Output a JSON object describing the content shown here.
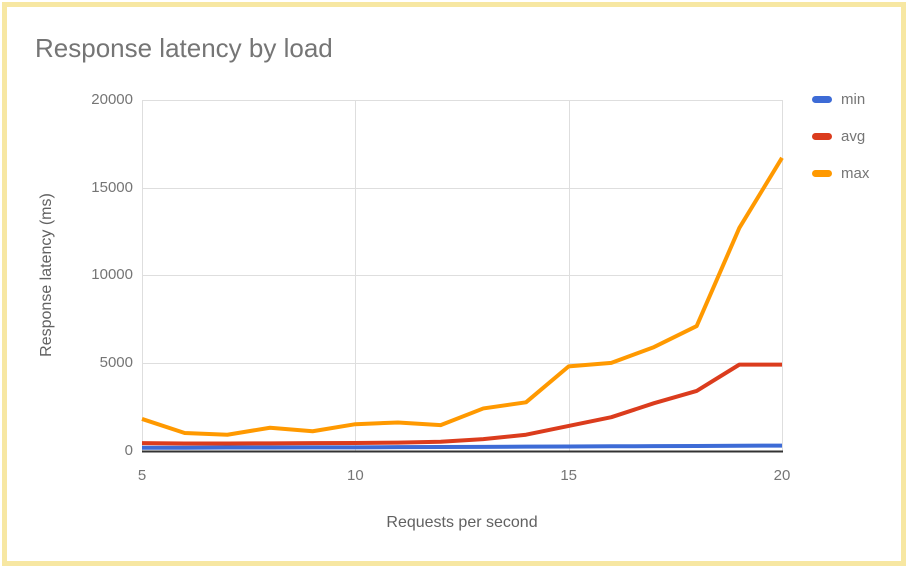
{
  "colors": {
    "frame_border": "#F7E7A2",
    "title_text": "#757575",
    "axis_title_text": "#616161",
    "tick_text": "#757575",
    "gridline": "#DEDEDE",
    "axis_baseline": "#333333"
  },
  "chart_data": {
    "type": "line",
    "title": "Response latency by load",
    "xlabel": "Requests per second",
    "ylabel": "Response latency (ms)",
    "x": [
      5,
      6,
      7,
      8,
      9,
      10,
      11,
      12,
      13,
      14,
      15,
      16,
      17,
      18,
      19,
      20
    ],
    "series": [
      {
        "name": "min",
        "color": "#3D6BD6",
        "values": [
          160,
          160,
          170,
          170,
          180,
          180,
          190,
          200,
          210,
          220,
          230,
          240,
          250,
          260,
          270,
          280
        ]
      },
      {
        "name": "avg",
        "color": "#DB3C1D",
        "values": [
          420,
          400,
          400,
          410,
          420,
          430,
          450,
          500,
          650,
          900,
          1400,
          1900,
          2700,
          3400,
          4900,
          4900
        ]
      },
      {
        "name": "max",
        "color": "#FF9900",
        "values": [
          1800,
          1000,
          900,
          1300,
          1100,
          1500,
          1600,
          1450,
          2400,
          2750,
          4800,
          5000,
          5900,
          7100,
          12700,
          16700
        ]
      }
    ],
    "ylim": [
      0,
      20000
    ],
    "yticks": [
      0,
      5000,
      10000,
      15000,
      20000
    ],
    "xticks": [
      5,
      10,
      15,
      20
    ],
    "grid": true,
    "legend_position": "right"
  }
}
